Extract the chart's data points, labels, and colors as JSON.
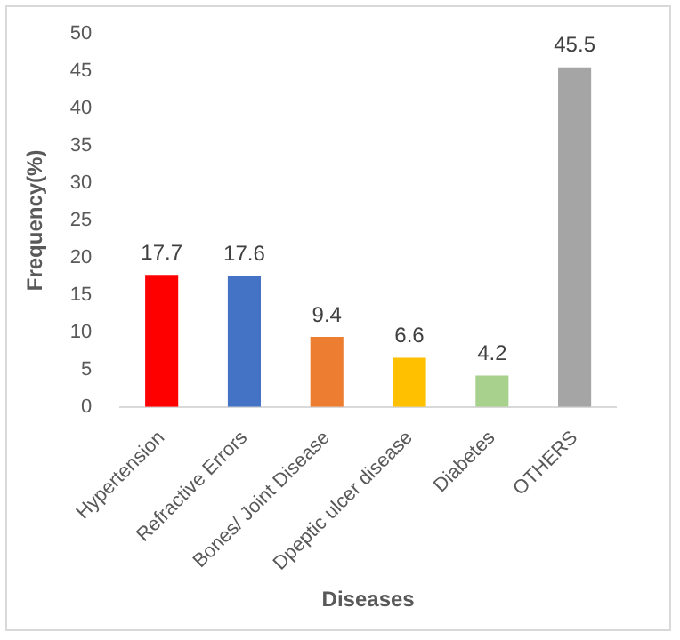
{
  "chart_data": {
    "type": "bar",
    "xlabel": "Diseases",
    "ylabel": "Frequency(%)",
    "categories": [
      "Hypertension",
      "Refractive Errors",
      "Bones/ Joint Disease",
      "Dpeptic ulcer disease",
      "Diabetes",
      "OTHERS"
    ],
    "values": [
      17.7,
      17.6,
      9.4,
      6.6,
      4.2,
      45.5
    ],
    "colors": [
      "#ff0000",
      "#4472c4",
      "#ed7d31",
      "#ffc000",
      "#a9d18e",
      "#a5a5a5"
    ],
    "ylim": [
      0,
      50
    ],
    "yticks": [
      0,
      5,
      10,
      15,
      20,
      25,
      30,
      35,
      40,
      45,
      50
    ],
    "grid": false,
    "data_labels": true,
    "legend": false
  }
}
